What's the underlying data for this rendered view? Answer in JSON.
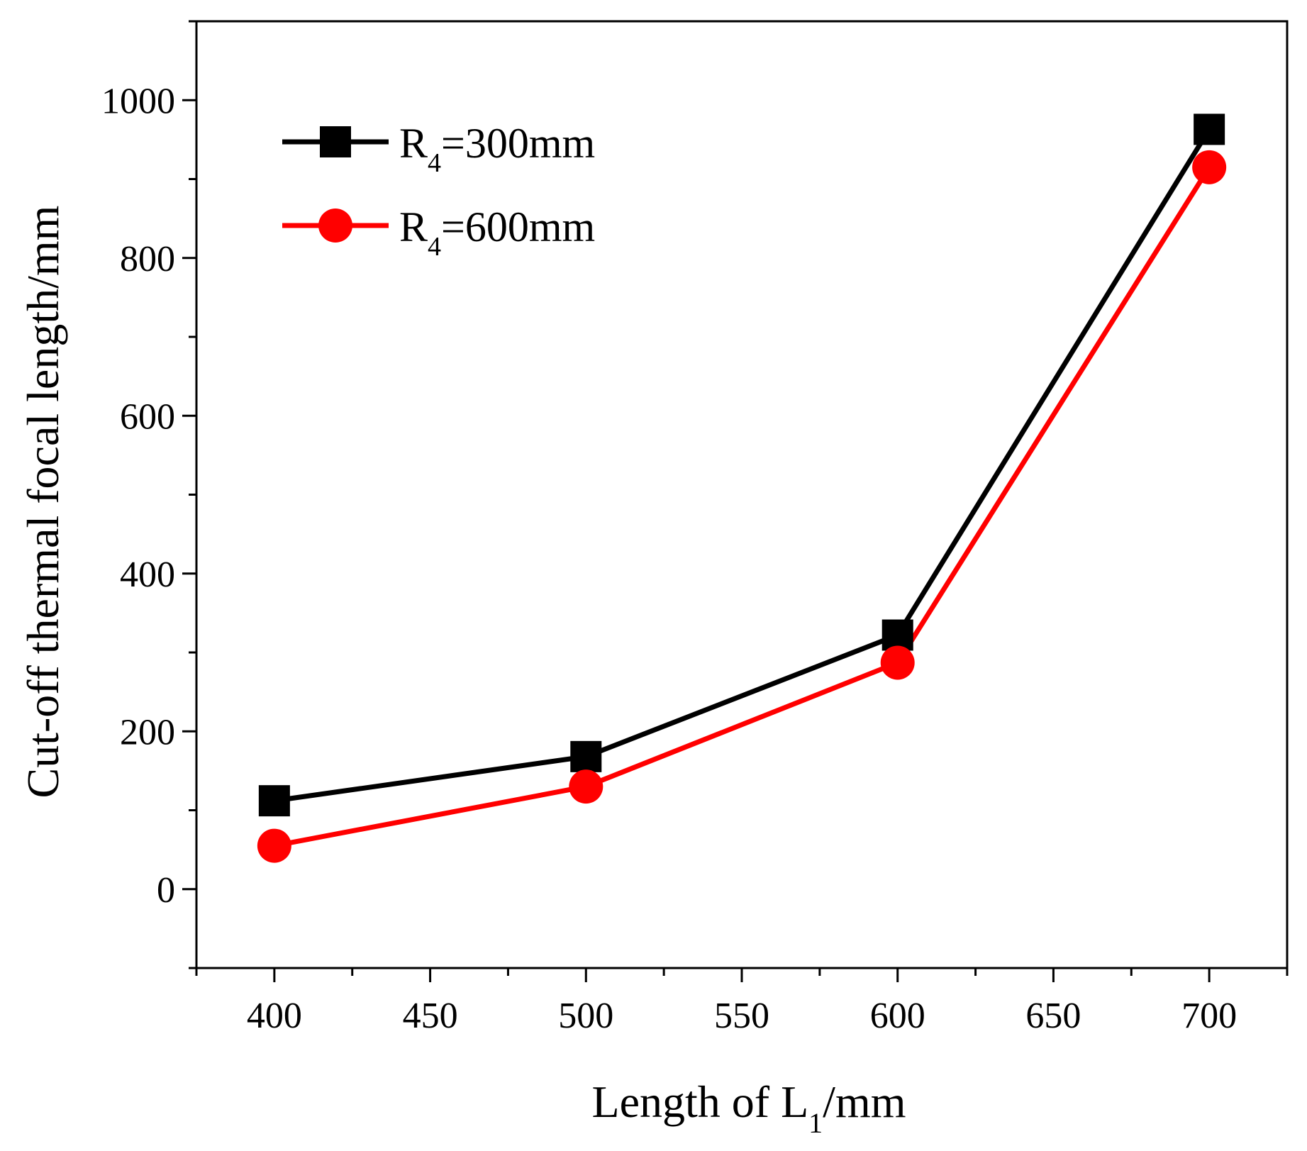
{
  "chart_data": {
    "type": "line",
    "title": "",
    "xlabel": {
      "main": "Length of L",
      "sub": "1",
      "suffix": "/mm"
    },
    "ylabel": "Cut-off thermal focal length/mm",
    "x": [
      400,
      500,
      600,
      700
    ],
    "xlim": [
      375,
      725
    ],
    "ylim": [
      -100,
      1100
    ],
    "xticks": [
      400,
      450,
      500,
      550,
      600,
      650,
      700
    ],
    "yticks": [
      0,
      200,
      400,
      600,
      800,
      1000
    ],
    "xminor": 25,
    "yminor": 100,
    "grid": false,
    "legend_position": "top-left",
    "series": [
      {
        "name": "R4=300mm",
        "label_main": "R",
        "label_sub": "4",
        "label_suffix": "=300mm",
        "marker": "square",
        "color": "#000000",
        "values": [
          112,
          168,
          322,
          963
        ]
      },
      {
        "name": "R4=600mm",
        "label_main": "R",
        "label_sub": "4",
        "label_suffix": "=600mm",
        "marker": "circle",
        "color": "#ff0000",
        "values": [
          55,
          130,
          287,
          915
        ]
      }
    ]
  }
}
